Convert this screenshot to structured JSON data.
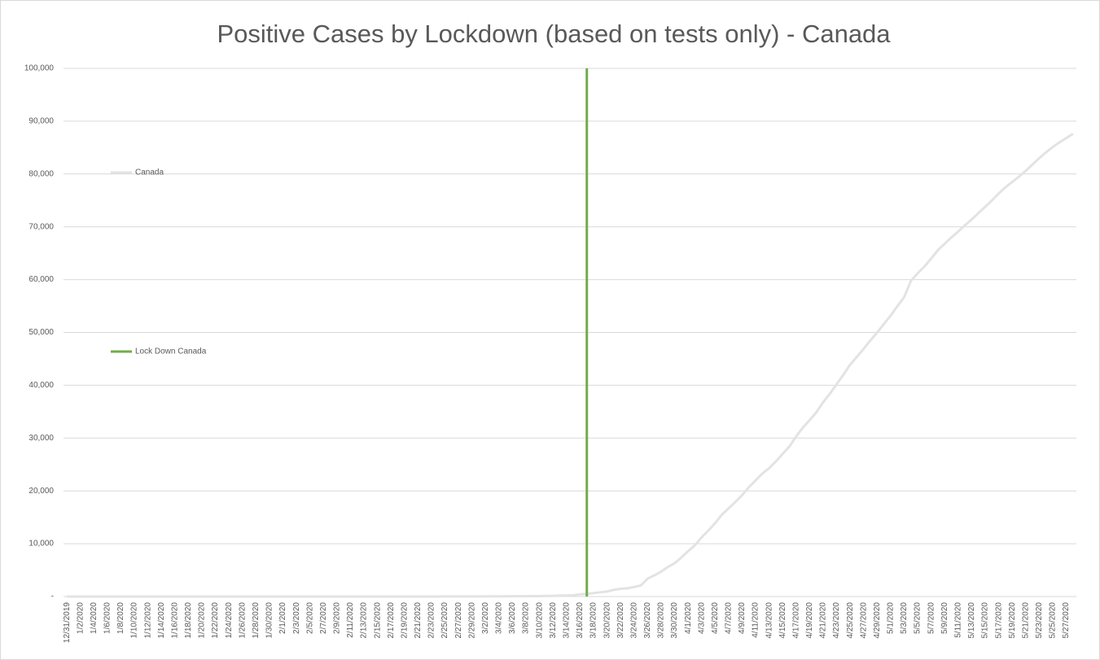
{
  "chart_data": {
    "type": "line",
    "title": "Positive Cases by Lockdown (based on tests only) - Canada",
    "categories": [
      "12/31/2019",
      null,
      "1/2/2020",
      null,
      "1/4/2020",
      null,
      "1/6/2020",
      null,
      "1/8/2020",
      null,
      "1/10/2020",
      null,
      "1/12/2020",
      null,
      "1/14/2020",
      null,
      "1/16/2020",
      null,
      "1/18/2020",
      null,
      "1/20/2020",
      null,
      "1/22/2020",
      null,
      "1/24/2020",
      null,
      "1/26/2020",
      null,
      "1/28/2020",
      null,
      "1/30/2020",
      null,
      "2/1/2020",
      null,
      "2/3/2020",
      null,
      "2/5/2020",
      null,
      "2/7/2020",
      null,
      "2/9/2020",
      null,
      "2/11/2020",
      null,
      "2/13/2020",
      null,
      "2/15/2020",
      null,
      "2/17/2020",
      null,
      "2/19/2020",
      null,
      "2/21/2020",
      null,
      "2/23/2020",
      null,
      "2/25/2020",
      null,
      "2/27/2020",
      null,
      "2/29/2020",
      null,
      "3/2/2020",
      null,
      "3/4/2020",
      null,
      "3/6/2020",
      null,
      "3/8/2020",
      null,
      "3/10/2020",
      null,
      "3/12/2020",
      null,
      "3/14/2020",
      null,
      "3/16/2020",
      null,
      "3/18/2020",
      null,
      "3/20/2020",
      null,
      "3/22/2020",
      null,
      "3/24/2020",
      null,
      "3/26/2020",
      null,
      "3/28/2020",
      null,
      "3/30/2020",
      null,
      "4/1/2020",
      null,
      "4/3/2020",
      null,
      "4/5/2020",
      null,
      "4/7/2020",
      null,
      "4/9/2020",
      null,
      "4/11/2020",
      null,
      "4/13/2020",
      null,
      "4/15/2020",
      null,
      "4/17/2020",
      null,
      "4/19/2020",
      null,
      "4/21/2020",
      null,
      "4/23/2020",
      null,
      "4/25/2020",
      null,
      "4/27/2020",
      null,
      "4/29/2020",
      null,
      "5/1/2020",
      null,
      "5/3/2020",
      null,
      "5/5/2020",
      null,
      "5/7/2020",
      null,
      "5/9/2020",
      null,
      "5/11/2020",
      null,
      "5/13/2020",
      null,
      "5/15/2020",
      null,
      "5/17/2020",
      null,
      "5/19/2020",
      null,
      "5/21/2020",
      null,
      "5/23/2020",
      null,
      "5/25/2020",
      null,
      "5/27/2020",
      null
    ],
    "series": [
      {
        "name": "Canada",
        "color": "#e3e3e3",
        "values": [
          0,
          0,
          0,
          0,
          0,
          0,
          0,
          0,
          0,
          0,
          0,
          0,
          0,
          0,
          0,
          0,
          0,
          0,
          0,
          0,
          0,
          0,
          0,
          0,
          0,
          1,
          2,
          2,
          3,
          3,
          3,
          4,
          4,
          4,
          4,
          4,
          5,
          5,
          5,
          7,
          7,
          7,
          7,
          7,
          7,
          7,
          7,
          7,
          7,
          7,
          7,
          8,
          9,
          9,
          9,
          10,
          11,
          11,
          11,
          14,
          20,
          24,
          27,
          30,
          33,
          37,
          49,
          54,
          64,
          77,
          79,
          108,
          117,
          193,
          198,
          252,
          415,
          478,
          657,
          800,
          943,
          1277,
          1469,
          1560,
          1800,
          2100,
          3400,
          4000,
          4700,
          5600,
          6300,
          7400,
          8600,
          9700,
          11200,
          12500,
          13900,
          15500,
          16700,
          17900,
          19200,
          20700,
          22000,
          23300,
          24300,
          25600,
          27000,
          28400,
          30300,
          32000,
          33400,
          34900,
          36800,
          38400,
          40200,
          42000,
          43900,
          45400,
          46900,
          48500,
          50000,
          51600,
          53200,
          55000,
          56700,
          59800,
          61200,
          62500,
          64000,
          65600,
          66800,
          68000,
          69100,
          70300,
          71400,
          72600,
          73800,
          75000,
          76300,
          77500,
          78500,
          79500,
          80600,
          81800,
          83000,
          84100,
          85100,
          86000,
          86800,
          87600
        ]
      },
      {
        "name": "Lock Down Canada",
        "color": "#70ad47",
        "mark": "bar",
        "values": [
          null,
          null,
          null,
          null,
          null,
          null,
          null,
          null,
          null,
          null,
          null,
          null,
          null,
          null,
          null,
          null,
          null,
          null,
          null,
          null,
          null,
          null,
          null,
          null,
          null,
          null,
          null,
          null,
          null,
          null,
          null,
          null,
          null,
          null,
          null,
          null,
          null,
          null,
          null,
          null,
          null,
          null,
          null,
          null,
          null,
          null,
          null,
          null,
          null,
          null,
          null,
          null,
          null,
          null,
          null,
          null,
          null,
          null,
          null,
          null,
          null,
          null,
          null,
          null,
          null,
          null,
          null,
          null,
          null,
          null,
          null,
          null,
          null,
          null,
          null,
          null,
          null,
          100000,
          null,
          null,
          null,
          null,
          null,
          null,
          null,
          null,
          null,
          null,
          null,
          null,
          null,
          null,
          null,
          null,
          null,
          null,
          null,
          null,
          null,
          null,
          null,
          null,
          null,
          null,
          null,
          null,
          null,
          null,
          null,
          null,
          null,
          null,
          null,
          null,
          null,
          null,
          null,
          null,
          null,
          null,
          null,
          null,
          null,
          null,
          null,
          null,
          null,
          null,
          null,
          null,
          null,
          null,
          null,
          null,
          null,
          null,
          null,
          null,
          null,
          null,
          null,
          null,
          null,
          null,
          null,
          null,
          null,
          null,
          null,
          null
        ]
      }
    ],
    "ylim": [
      0,
      100000
    ],
    "yticks": [
      {
        "value": 0,
        "label": "-"
      },
      {
        "value": 10000,
        "label": "10,000"
      },
      {
        "value": 20000,
        "label": "20,000"
      },
      {
        "value": 30000,
        "label": "30,000"
      },
      {
        "value": 40000,
        "label": "40,000"
      },
      {
        "value": 50000,
        "label": "50,000"
      },
      {
        "value": 60000,
        "label": "60,000"
      },
      {
        "value": 70000,
        "label": "70,000"
      },
      {
        "value": 80000,
        "label": "80,000"
      },
      {
        "value": 90000,
        "label": "90,000"
      },
      {
        "value": 100000,
        "label": "100,000"
      }
    ],
    "grid": true,
    "legend": "left"
  }
}
